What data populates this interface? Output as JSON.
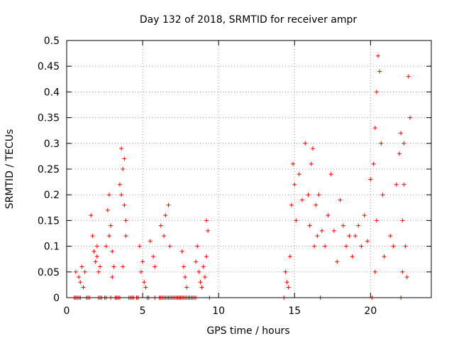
{
  "chart_data": {
    "type": "scatter",
    "title": "Day 132 of 2018, SRMTID for receiver ampr",
    "xlabel": "GPS time / hours",
    "ylabel": "SRMTID / TECUs",
    "xlim": [
      0,
      24
    ],
    "ylim": [
      0,
      0.5
    ],
    "x_ticks": [
      0,
      5,
      10,
      15,
      20
    ],
    "y_ticks": [
      0,
      0.05,
      0.1,
      0.15,
      0.2,
      0.25,
      0.3,
      0.35,
      0.4,
      0.45,
      0.5
    ],
    "x_tick_labels": [
      "0",
      "5",
      "10",
      "15",
      "20"
    ],
    "y_tick_labels": [
      "0",
      "0.05",
      "0.1",
      "0.15",
      "0.2",
      "0.25",
      "0.3",
      "0.35",
      "0.4",
      "0.45",
      "0.5"
    ],
    "grid": true,
    "marker": "+",
    "color": "#ff0000",
    "series": [
      {
        "name": "SRMTID",
        "x": [
          0.6,
          0.8,
          0.9,
          1.0,
          1.1,
          1.2,
          1.6,
          1.7,
          1.8,
          1.9,
          2.0,
          2.1,
          2.0,
          2.2,
          2.6,
          2.7,
          2.8,
          2.9,
          3.0,
          3.1,
          3.0,
          2.8,
          3.5,
          3.6,
          3.7,
          3.8,
          3.9,
          3.7,
          3.8,
          3.9,
          3.6,
          4.8,
          4.9,
          5.0,
          5.1,
          5.2,
          5.5,
          5.7,
          5.8,
          6.2,
          6.4,
          6.5,
          6.7,
          6.8,
          7.6,
          7.7,
          7.8,
          7.9,
          8.5,
          8.6,
          8.7,
          8.8,
          8.9,
          9.0,
          9.1,
          9.2,
          9.3,
          9.2,
          14.4,
          14.5,
          14.6,
          14.7,
          14.8,
          14.9,
          15.0,
          15.1,
          15.3,
          15.5,
          15.7,
          15.9,
          16.0,
          16.1,
          16.2,
          16.3,
          16.4,
          16.5,
          16.6,
          16.8,
          17.0,
          17.2,
          17.4,
          17.6,
          17.8,
          18.0,
          18.2,
          18.4,
          18.6,
          18.8,
          19.0,
          19.2,
          19.4,
          19.6,
          19.8,
          20.0,
          20.2,
          20.3,
          20.4,
          20.5,
          20.6,
          20.7,
          20.8,
          20.9,
          20.4,
          20.3,
          21.3,
          21.5,
          21.7,
          21.9,
          22.0,
          22.1,
          22.2,
          22.3,
          22.4,
          22.5,
          22.6,
          22.2,
          22.1
        ],
        "y": [
          0.05,
          0.04,
          0.03,
          0.06,
          0.02,
          0.05,
          0.16,
          0.12,
          0.09,
          0.07,
          0.1,
          0.05,
          0.08,
          0.06,
          0.1,
          0.17,
          0.2,
          0.14,
          0.09,
          0.06,
          0.04,
          0.12,
          0.22,
          0.29,
          0.25,
          0.18,
          0.12,
          0.06,
          0.27,
          0.15,
          0.2,
          0.1,
          0.05,
          0.07,
          0.03,
          0.02,
          0.11,
          0.08,
          0.06,
          0.14,
          0.12,
          0.16,
          0.18,
          0.1,
          0.09,
          0.06,
          0.04,
          0.02,
          0.07,
          0.1,
          0.05,
          0.03,
          0.02,
          0.06,
          0.04,
          0.15,
          0.13,
          0.08,
          0.05,
          0.03,
          0.02,
          0.08,
          0.18,
          0.26,
          0.22,
          0.15,
          0.24,
          0.19,
          0.3,
          0.2,
          0.14,
          0.26,
          0.29,
          0.1,
          0.18,
          0.12,
          0.2,
          0.13,
          0.1,
          0.16,
          0.24,
          0.13,
          0.07,
          0.19,
          0.14,
          0.1,
          0.12,
          0.08,
          0.12,
          0.14,
          0.1,
          0.16,
          0.11,
          0.23,
          0.26,
          0.33,
          0.4,
          0.47,
          0.44,
          0.3,
          0.2,
          0.08,
          0.15,
          0.05,
          0.12,
          0.1,
          0.22,
          0.28,
          0.32,
          0.15,
          0.22,
          0.1,
          0.04,
          0.43,
          0.35,
          0.3,
          0.05
        ]
      }
    ],
    "zero_markers_x": [
      0.5,
      0.6,
      0.7,
      0.8,
      0.9,
      1.3,
      1.4,
      1.5,
      2.1,
      2.2,
      2.3,
      2.5,
      2.6,
      2.9,
      3.2,
      3.3,
      3.4,
      3.5,
      4.1,
      4.2,
      4.3,
      4.4,
      4.6,
      4.7,
      5.3,
      5.4,
      5.8,
      6.1,
      6.2,
      6.3,
      6.4,
      6.5,
      6.6,
      6.7,
      6.8,
      6.9,
      7.0,
      7.1,
      7.2,
      7.3,
      7.4,
      7.5,
      7.6,
      7.7,
      7.8,
      7.9,
      8.0,
      8.1,
      8.2,
      8.3,
      8.4,
      8.5,
      9.4,
      14.3,
      16.7,
      20.1,
      22.0
    ]
  }
}
